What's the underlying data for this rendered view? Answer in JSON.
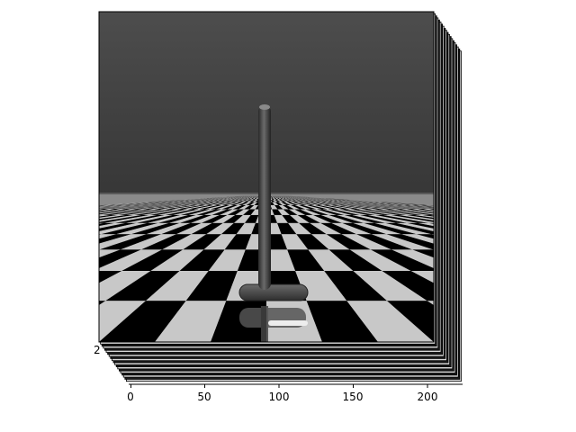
{
  "figure": {
    "frame_count": 20,
    "visible_leading_ytick": "2",
    "xticks": [
      "0",
      "50",
      "100",
      "150",
      "200"
    ],
    "colors": {
      "sky_top": "#4a4a4a",
      "sky_bottom": "#373737",
      "tile_light": "#c8c8c8",
      "tile_dark": "#000000",
      "pole": "#3c3c3c"
    }
  },
  "scene": {
    "object": "inverted-pendulum",
    "floor": "checkerboard"
  }
}
